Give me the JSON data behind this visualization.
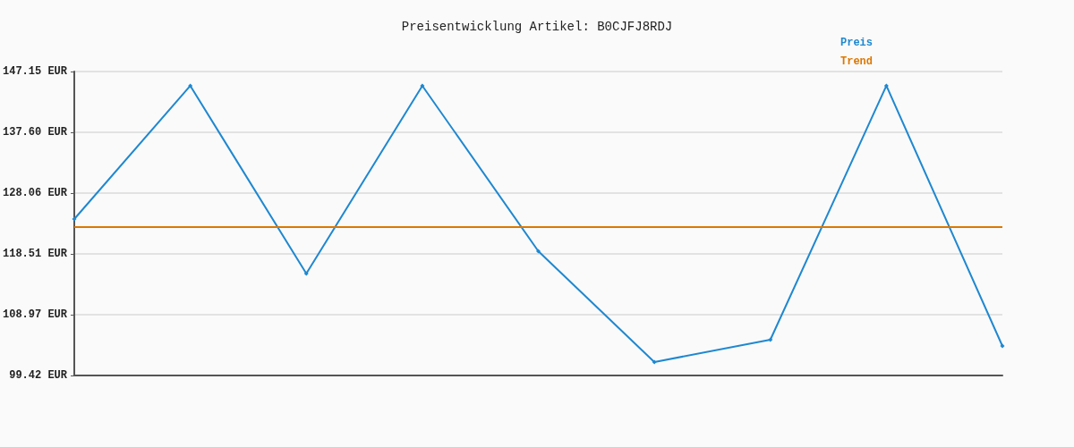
{
  "chart_data": {
    "type": "line",
    "title": "Preisentwicklung Artikel: B0CJFJ8RDJ",
    "categories": [
      null,
      null,
      null,
      null,
      null,
      null,
      null,
      null,
      null
    ],
    "series": [
      {
        "name": "Preis",
        "color": "#1f88d0",
        "marker": "diamond",
        "values": [
          123.99,
          144.91,
          115.42,
          144.91,
          118.93,
          101.53,
          105.04,
          144.91,
          104.05
        ]
      },
      {
        "name": "Trend",
        "color": "#dd7700",
        "marker": "none",
        "values": [
          122.73,
          122.73,
          122.73,
          122.73,
          122.73,
          122.73,
          122.73,
          122.73,
          122.73
        ]
      }
    ],
    "ylim": [
      99.42,
      147.15
    ],
    "yticks": [
      {
        "value": 99.42,
        "label": "99.42 EUR"
      },
      {
        "value": 108.97,
        "label": "108.97 EUR"
      },
      {
        "value": 118.51,
        "label": "118.51 EUR"
      },
      {
        "value": 128.06,
        "label": "128.06 EUR"
      },
      {
        "value": 137.6,
        "label": "137.60 EUR"
      },
      {
        "value": 147.15,
        "label": "147.15 EUR"
      }
    ],
    "grid": "y",
    "legend": "top right",
    "line_style": "solid"
  }
}
